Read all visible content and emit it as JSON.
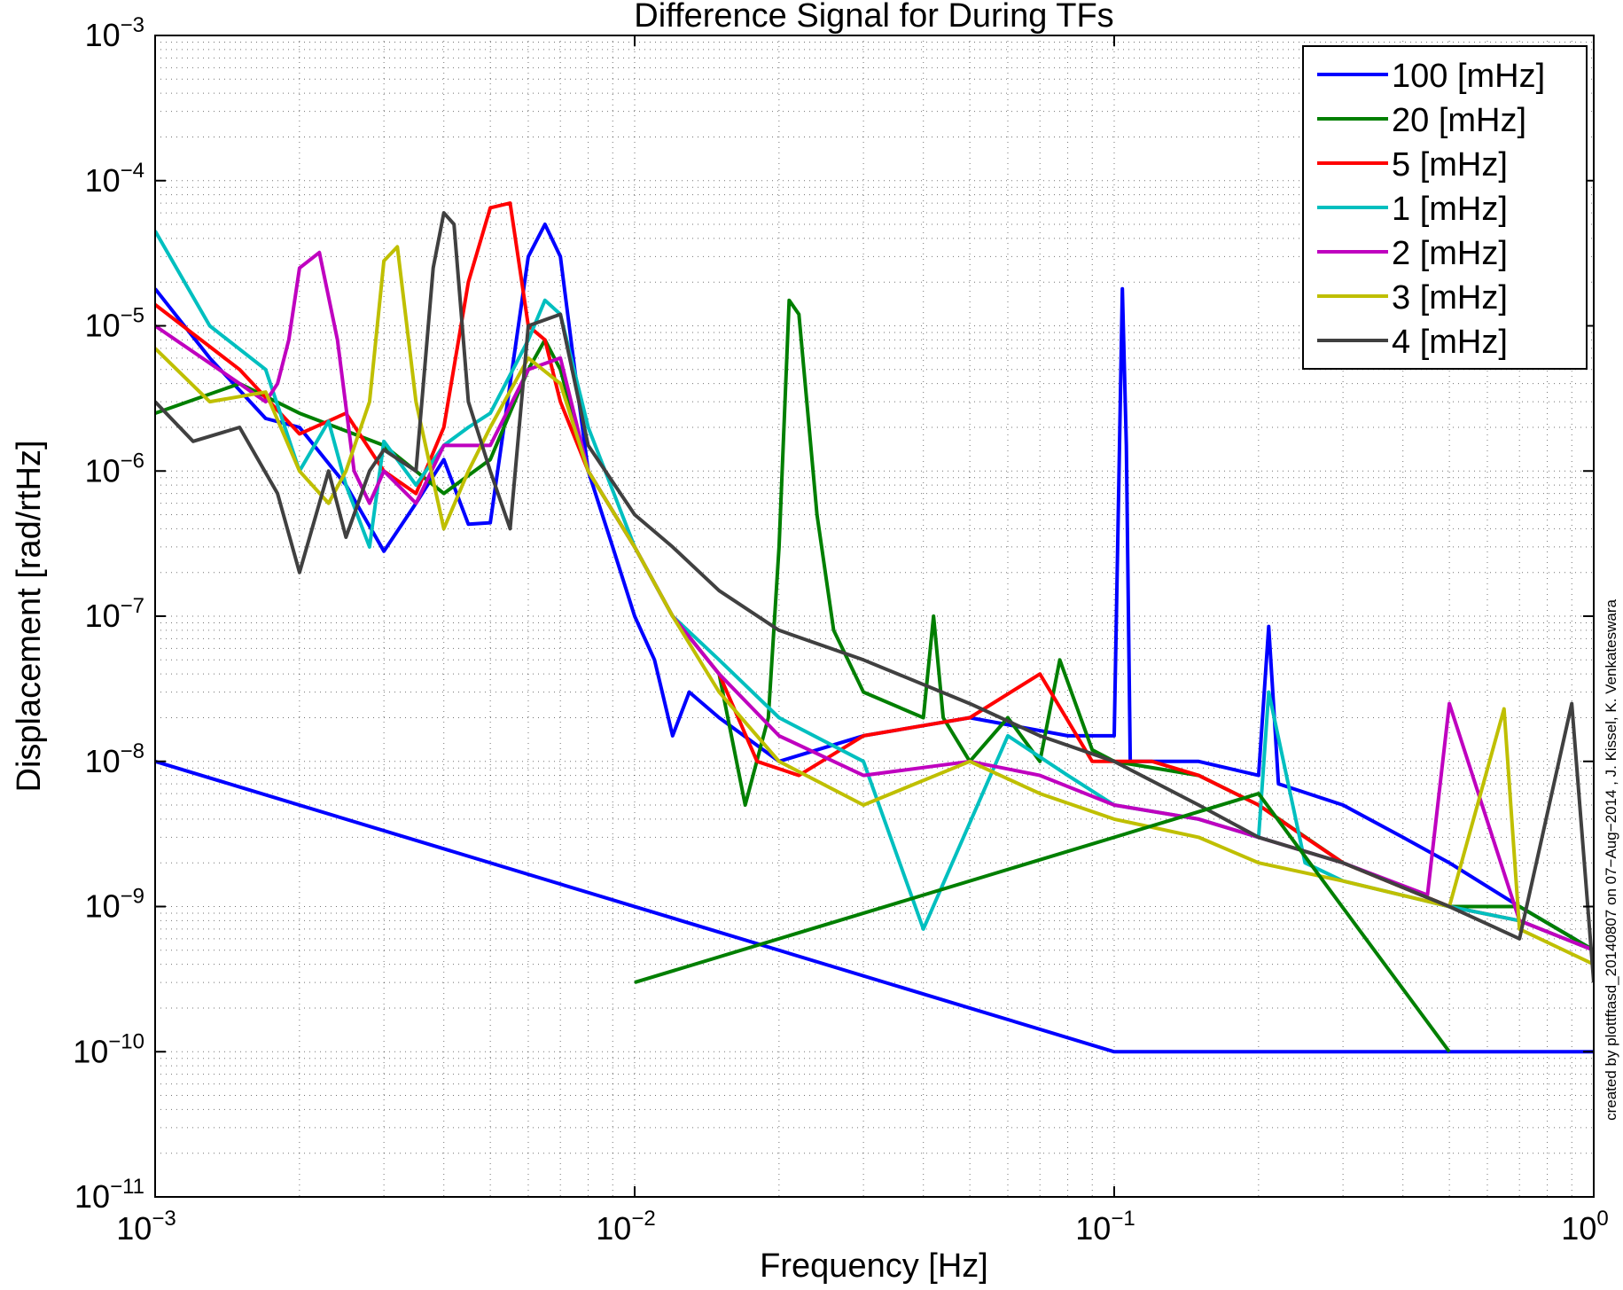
{
  "chart_data": {
    "type": "line",
    "title": "Difference Signal for During TFs",
    "xlabel": "Frequency [Hz]",
    "ylabel": "Displacement [rad/rtHz]",
    "x_scale": "log",
    "y_scale": "log",
    "xlim": [
      0.001,
      1
    ],
    "ylim": [
      1e-11,
      0.001
    ],
    "grid": true,
    "legend_position": "top-right",
    "x_ticks": [
      {
        "base": "10",
        "exp": "−3",
        "value": 0.001
      },
      {
        "base": "10",
        "exp": "−2",
        "value": 0.01
      },
      {
        "base": "10",
        "exp": "−1",
        "value": 0.1
      },
      {
        "base": "10",
        "exp": "0",
        "value": 1
      }
    ],
    "y_ticks": [
      {
        "base": "10",
        "exp": "−3",
        "value": 0.001
      },
      {
        "base": "10",
        "exp": "−4",
        "value": 0.0001
      },
      {
        "base": "10",
        "exp": "−5",
        "value": 1e-05
      },
      {
        "base": "10",
        "exp": "−6",
        "value": 1e-06
      },
      {
        "base": "10",
        "exp": "−7",
        "value": 1e-07
      },
      {
        "base": "10",
        "exp": "−8",
        "value": 1e-08
      },
      {
        "base": "10",
        "exp": "−9",
        "value": 1e-09
      },
      {
        "base": "10",
        "exp": "−10",
        "value": 1e-10
      },
      {
        "base": "10",
        "exp": "−11",
        "value": 1e-11
      }
    ],
    "annotation": "created by plottftasd_20140807 on 07−Aug−2014 , J. Kissel, K. Venkateswara",
    "series": [
      {
        "name": "100 [mHz]",
        "color": "#0000ff",
        "x": [
          0.001,
          0.0013,
          0.0017,
          0.002,
          0.0025,
          0.003,
          0.0035,
          0.004,
          0.0045,
          0.005,
          0.0055,
          0.006,
          0.0065,
          0.007,
          0.0075,
          0.008,
          0.009,
          0.01,
          0.011,
          0.012,
          0.013,
          0.015,
          0.02,
          0.03,
          0.05,
          0.08,
          0.1,
          0.104,
          0.106,
          0.108,
          0.12,
          0.15,
          0.2,
          0.21,
          0.22,
          0.3,
          0.4,
          0.5,
          0.7,
          1.0
        ],
        "y": [
          1.8e-05,
          6e-06,
          2.3e-06,
          2e-06,
          8e-07,
          2.8e-07,
          6e-07,
          1.2e-06,
          4.3e-07,
          4.4e-07,
          4e-06,
          3e-05,
          5e-05,
          3e-05,
          5e-06,
          1e-06,
          3e-07,
          1e-07,
          5e-08,
          1.5e-08,
          3e-08,
          2e-08,
          1e-08,
          1.5e-08,
          2e-08,
          1.5e-08,
          1.5e-08,
          1.8e-05,
          1.5e-06,
          1e-08,
          1e-08,
          1e-08,
          8e-09,
          8.5e-08,
          7e-09,
          5e-09,
          3e-09,
          2e-09,
          1e-09,
          5e-10
        ]
      },
      {
        "name": "20 [mHz]",
        "color": "#007f00",
        "x": [
          0.001,
          0.0015,
          0.002,
          0.003,
          0.004,
          0.005,
          0.006,
          0.0065,
          0.007,
          0.008,
          0.01,
          0.012,
          0.015,
          0.017,
          0.019,
          0.02,
          0.021,
          0.022,
          0.024,
          0.026,
          0.03,
          0.04,
          0.042,
          0.044,
          0.05,
          0.06,
          0.07,
          0.077,
          0.09,
          0.1,
          0.15,
          0.2,
          0.3,
          0.5,
          0.7,
          1.0
        ],
        "y": [
          2.5e-06,
          4e-06,
          2.5e-06,
          1.5e-06,
          7e-07,
          1.2e-06,
          5e-06,
          8e-06,
          5e-06,
          1e-06,
          3e-07,
          1e-07,
          4e-08,
          5e-09,
          2e-08,
          3e-07,
          1.5e-05,
          1.2e-05,
          5e-07,
          8e-08,
          3e-08,
          2e-08,
          1e-07,
          2e-08,
          1e-08,
          2e-08,
          1e-08,
          5e-08,
          1.2e-08,
          1e-08,
          8e-09,
          5e-09,
          2e-09,
          1e-09,
          1e-09,
          5e-10
        ]
      },
      {
        "name": "5 [mHz]",
        "color": "#ff0000",
        "x": [
          0.001,
          0.0015,
          0.002,
          0.0025,
          0.003,
          0.0035,
          0.004,
          0.0045,
          0.005,
          0.0055,
          0.006,
          0.0065,
          0.007,
          0.008,
          0.01,
          0.012,
          0.015,
          0.018,
          0.022,
          0.03,
          0.05,
          0.07,
          0.09,
          0.12,
          0.15,
          0.2,
          0.25,
          0.3,
          0.5,
          0.7,
          1.0
        ],
        "y": [
          1.4e-05,
          5e-06,
          1.8e-06,
          2.5e-06,
          1e-06,
          7e-07,
          2e-06,
          2e-05,
          6.5e-05,
          7e-05,
          1e-05,
          8e-06,
          3e-06,
          1e-06,
          3e-07,
          1e-07,
          4e-08,
          1e-08,
          8e-09,
          1.5e-08,
          2e-08,
          4e-08,
          1e-08,
          1e-08,
          8e-09,
          5e-09,
          3e-09,
          2e-09,
          1e-09,
          8e-10,
          5e-10
        ]
      },
      {
        "name": "1 [mHz]",
        "color": "#00bfbf",
        "x": [
          0.001,
          0.0013,
          0.0017,
          0.002,
          0.0023,
          0.0025,
          0.0028,
          0.003,
          0.0035,
          0.004,
          0.0045,
          0.005,
          0.006,
          0.0065,
          0.007,
          0.008,
          0.01,
          0.012,
          0.015,
          0.02,
          0.03,
          0.04,
          0.06,
          0.08,
          0.1,
          0.15,
          0.2,
          0.21,
          0.25,
          0.3,
          0.5,
          0.7,
          1.0
        ],
        "y": [
          4.5e-05,
          1e-05,
          5e-06,
          1e-06,
          2.2e-06,
          8e-07,
          3e-07,
          1.6e-06,
          8e-07,
          1.5e-06,
          2e-06,
          2.5e-06,
          8e-06,
          1.5e-05,
          1.2e-05,
          2e-06,
          3e-07,
          1e-07,
          5e-08,
          2e-08,
          1e-08,
          7e-10,
          1.5e-08,
          8e-09,
          5e-09,
          4e-09,
          3e-09,
          3e-08,
          2e-09,
          1.5e-09,
          1e-09,
          8e-10,
          5e-10
        ]
      },
      {
        "name": "2 [mHz]",
        "color": "#bf00bf",
        "x": [
          0.001,
          0.0015,
          0.0017,
          0.0018,
          0.0019,
          0.002,
          0.0022,
          0.0024,
          0.0026,
          0.0028,
          0.003,
          0.0035,
          0.004,
          0.005,
          0.006,
          0.007,
          0.008,
          0.01,
          0.012,
          0.015,
          0.02,
          0.03,
          0.05,
          0.07,
          0.1,
          0.15,
          0.2,
          0.3,
          0.45,
          0.5,
          0.7,
          1.0
        ],
        "y": [
          1e-05,
          4e-06,
          3e-06,
          4e-06,
          8e-06,
          2.5e-05,
          3.2e-05,
          8e-06,
          1e-06,
          6e-07,
          1e-06,
          6e-07,
          1.5e-06,
          1.5e-06,
          5e-06,
          6e-06,
          1e-06,
          3e-07,
          1e-07,
          4e-08,
          1.5e-08,
          8e-09,
          1e-08,
          8e-09,
          5e-09,
          4e-09,
          3e-09,
          2e-09,
          1.2e-09,
          2.5e-08,
          8e-10,
          5e-10
        ]
      },
      {
        "name": "3 [mHz]",
        "color": "#bfbf00",
        "x": [
          0.001,
          0.0013,
          0.0017,
          0.002,
          0.0023,
          0.0025,
          0.0028,
          0.003,
          0.0032,
          0.0035,
          0.004,
          0.0045,
          0.005,
          0.006,
          0.007,
          0.008,
          0.01,
          0.012,
          0.015,
          0.02,
          0.03,
          0.05,
          0.07,
          0.1,
          0.15,
          0.2,
          0.3,
          0.5,
          0.65,
          0.7,
          1.0
        ],
        "y": [
          7e-06,
          3e-06,
          3.5e-06,
          1e-06,
          6e-07,
          1e-06,
          3e-06,
          2.8e-05,
          3.5e-05,
          3e-06,
          4e-07,
          1e-06,
          2e-06,
          6e-06,
          4e-06,
          1e-06,
          3e-07,
          1e-07,
          3e-08,
          1e-08,
          5e-09,
          1e-08,
          6e-09,
          4e-09,
          3e-09,
          2e-09,
          1.5e-09,
          1e-09,
          2.3e-08,
          7e-10,
          4e-10
        ]
      },
      {
        "name": "4 [mHz]",
        "color": "#404040",
        "x": [
          0.001,
          0.0012,
          0.0015,
          0.0018,
          0.002,
          0.0023,
          0.0025,
          0.0028,
          0.003,
          0.0035,
          0.0038,
          0.004,
          0.0042,
          0.0045,
          0.005,
          0.0055,
          0.006,
          0.007,
          0.008,
          0.01,
          0.012,
          0.015,
          0.02,
          0.03,
          0.05,
          0.07,
          0.1,
          0.15,
          0.2,
          0.3,
          0.5,
          0.7,
          0.9,
          1.0
        ],
        "y": [
          3e-06,
          1.6e-06,
          2e-06,
          7e-07,
          2e-07,
          1e-06,
          3.5e-07,
          1e-06,
          1.4e-06,
          1e-06,
          2.5e-05,
          6e-05,
          5e-05,
          3e-06,
          1e-06,
          4e-07,
          1e-05,
          1.2e-05,
          1.5e-06,
          5e-07,
          3e-07,
          1.5e-07,
          8e-08,
          5e-08,
          2.5e-08,
          1.5e-08,
          1e-08,
          5e-09,
          3e-09,
          2e-09,
          1e-09,
          6e-10,
          2.5e-08,
          3e-10
        ]
      },
      {
        "color": "#0000ff",
        "x": [
          0.001,
          0.1,
          1.0
        ],
        "y": [
          1e-08,
          1e-10,
          1e-10
        ]
      },
      {
        "color": "#007f00",
        "x": [
          0.01,
          0.2,
          0.5
        ],
        "y": [
          3e-10,
          6e-09,
          1e-10
        ]
      }
    ]
  }
}
